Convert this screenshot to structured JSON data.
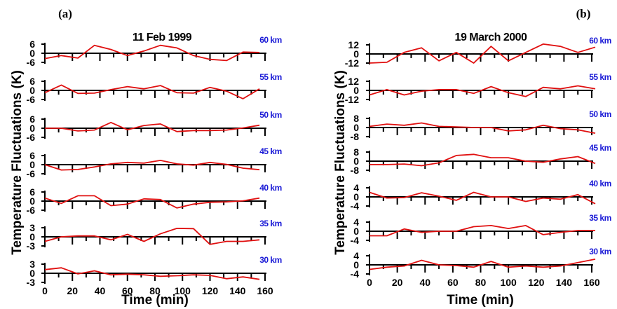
{
  "ylabel": "Temperature Fluctuations (K)",
  "colors": {
    "line": "#e01010",
    "altitude": "#1a1ad6",
    "axis": "#000000"
  },
  "chart_data": [
    {
      "type": "line",
      "panel_label": "(a)",
      "title": "11 Feb 1999",
      "xlabel": "Time (min)",
      "xlim": [
        0,
        160
      ],
      "x_ticks": [
        "0",
        "20",
        "40",
        "60",
        "80",
        "100",
        "120",
        "140",
        "160"
      ],
      "panels": [
        {
          "altitude": "60 km",
          "ylim": [
            -6,
            6
          ],
          "y_ticks": [
            "6",
            "0",
            "-6"
          ],
          "x": [
            0,
            12,
            24,
            36,
            48,
            60,
            72,
            84,
            96,
            108,
            120,
            132,
            144,
            156
          ],
          "values": [
            -3.5,
            -1.5,
            -3.2,
            5.2,
            2.5,
            -1.5,
            1.5,
            5.2,
            3.5,
            -1.5,
            -4,
            -4.8,
            0.8,
            0.5
          ]
        },
        {
          "altitude": "55 km",
          "ylim": [
            -6,
            6
          ],
          "y_ticks": [
            "6",
            "0",
            "-6"
          ],
          "x": [
            0,
            12,
            24,
            36,
            48,
            60,
            72,
            84,
            96,
            108,
            120,
            132,
            144,
            156
          ],
          "values": [
            -1.5,
            3.5,
            -2,
            -1.8,
            0.5,
            2.5,
            1,
            3.2,
            -1.5,
            -1.8,
            2,
            -0.5,
            -5.5,
            1
          ]
        },
        {
          "altitude": "50 km",
          "ylim": [
            -6,
            6
          ],
          "y_ticks": [
            "6",
            "0",
            "-6"
          ],
          "x": [
            0,
            12,
            24,
            36,
            48,
            60,
            72,
            84,
            96,
            108,
            120,
            132,
            144,
            156
          ],
          "values": [
            0,
            0,
            -1.8,
            -1.2,
            3.8,
            -1,
            1.8,
            2.8,
            -2.2,
            -1.5,
            -1.5,
            -1.2,
            0.2,
            2
          ]
        },
        {
          "altitude": "45 km",
          "ylim": [
            -6,
            6
          ],
          "y_ticks": [
            "6",
            "0",
            "-6"
          ],
          "x": [
            0,
            12,
            24,
            36,
            48,
            60,
            72,
            84,
            96,
            108,
            120,
            132,
            144,
            156
          ],
          "values": [
            0,
            -3.5,
            -3.2,
            -1.5,
            0.5,
            1.5,
            1,
            2.8,
            0.5,
            -0.3,
            1.5,
            0.2,
            -2.3,
            -3.3
          ]
        },
        {
          "altitude": "40 km",
          "ylim": [
            -6,
            6
          ],
          "y_ticks": [
            "6",
            "0",
            "-6"
          ],
          "x": [
            0,
            12,
            24,
            36,
            48,
            60,
            72,
            84,
            96,
            108,
            120,
            132,
            144,
            156
          ],
          "values": [
            2,
            -1.5,
            3.5,
            3.5,
            -3,
            -2,
            1.5,
            1,
            -4.5,
            -2,
            -0.8,
            -0.5,
            0.2,
            2
          ]
        },
        {
          "altitude": "35 km",
          "ylim": [
            -3,
            3
          ],
          "y_ticks": [
            "3",
            "0",
            "-3"
          ],
          "x": [
            0,
            12,
            24,
            36,
            48,
            60,
            72,
            84,
            96,
            108,
            120,
            132,
            144,
            156
          ],
          "values": [
            -1.5,
            0,
            0.3,
            0.3,
            -1,
            0.8,
            -1.5,
            1,
            2.8,
            2.7,
            -2.5,
            -1.5,
            -1.5,
            -1
          ]
        },
        {
          "altitude": "30 km",
          "ylim": [
            -3,
            3
          ],
          "y_ticks": [
            "3",
            "0",
            "-3"
          ],
          "x": [
            0,
            12,
            24,
            36,
            48,
            60,
            72,
            84,
            96,
            108,
            120,
            132,
            144,
            156
          ],
          "values": [
            1.2,
            1.8,
            -0.2,
            0.8,
            -0.5,
            -0.3,
            -0.5,
            -1,
            -0.8,
            -0.5,
            -0.7,
            -1.8,
            -1.2,
            -2
          ]
        }
      ]
    },
    {
      "type": "line",
      "panel_label": "(b)",
      "title": "19 March 2000",
      "xlabel": "Time (min)",
      "xlim": [
        0,
        160
      ],
      "x_ticks": [
        "0",
        "20",
        "40",
        "60",
        "80",
        "100",
        "120",
        "140",
        "160"
      ],
      "panels": [
        {
          "altitude": "60 km",
          "ylim": [
            -12,
            12
          ],
          "y_ticks": [
            "12",
            "0",
            "-12"
          ],
          "x": [
            0,
            12.5,
            25,
            37.5,
            50,
            62.5,
            75,
            87.5,
            100,
            112.5,
            125,
            137.5,
            150,
            162.5
          ],
          "values": [
            -12,
            -11,
            2,
            8,
            -9,
            2,
            -12,
            10,
            -9,
            2,
            13,
            10,
            2,
            9
          ]
        },
        {
          "altitude": "55 km",
          "ylim": [
            -12,
            12
          ],
          "y_ticks": [
            "12",
            "0",
            "-12"
          ],
          "x": [
            0,
            12.5,
            25,
            37.5,
            50,
            62.5,
            75,
            87.5,
            100,
            112.5,
            125,
            137.5,
            150,
            162.5
          ],
          "values": [
            -6,
            1,
            -6,
            -1,
            1,
            1,
            -4,
            5,
            -3,
            -8,
            4,
            2,
            6,
            2
          ]
        },
        {
          "altitude": "50 km",
          "ylim": [
            -8,
            8
          ],
          "y_ticks": [
            "8",
            "0",
            "-8"
          ],
          "x": [
            0,
            12.5,
            25,
            37.5,
            50,
            62.5,
            75,
            87.5,
            100,
            112.5,
            125,
            137.5,
            150,
            162.5
          ],
          "values": [
            1,
            3,
            2,
            4,
            1,
            0.5,
            0,
            0,
            -3,
            -2,
            2,
            -1,
            -2,
            -5
          ]
        },
        {
          "altitude": "45 km",
          "ylim": [
            -8,
            8
          ],
          "y_ticks": [
            "8",
            "0",
            "-8"
          ],
          "x": [
            0,
            12.5,
            25,
            37.5,
            50,
            62.5,
            75,
            87.5,
            100,
            112.5,
            125,
            137.5,
            150,
            162.5
          ],
          "values": [
            -3,
            -3,
            -2.5,
            -4,
            -1.5,
            5,
            6,
            3,
            3,
            0,
            -1,
            2,
            4,
            -2
          ]
        },
        {
          "altitude": "40 km",
          "ylim": [
            -4,
            4
          ],
          "y_ticks": [
            "4",
            "0",
            "-4"
          ],
          "x": [
            0,
            12.5,
            25,
            37.5,
            50,
            62.5,
            75,
            87.5,
            100,
            112.5,
            125,
            137.5,
            150,
            162.5
          ],
          "values": [
            2,
            -0.5,
            -0.3,
            1.8,
            0.3,
            -1.5,
            2,
            0,
            0,
            -2,
            -0.5,
            -1,
            1,
            -3
          ]
        },
        {
          "altitude": "35 km",
          "ylim": [
            -4,
            4
          ],
          "y_ticks": [
            "4",
            "0",
            "-4"
          ],
          "x": [
            0,
            12.5,
            25,
            37.5,
            50,
            62.5,
            75,
            87.5,
            100,
            112.5,
            125,
            137.5,
            150,
            162.5
          ],
          "values": [
            -2,
            -2,
            1,
            -0.5,
            0,
            0,
            2,
            2.5,
            1.2,
            2.5,
            -1.5,
            -0.5,
            0.3,
            0.3
          ]
        },
        {
          "altitude": "30 km",
          "ylim": [
            -4,
            4
          ],
          "y_ticks": [
            "4",
            "0",
            "-4"
          ],
          "x": [
            0,
            12.5,
            25,
            37.5,
            50,
            62.5,
            75,
            87.5,
            100,
            112.5,
            125,
            137.5,
            150,
            162.5
          ],
          "values": [
            -2,
            -1,
            -0.5,
            2,
            0,
            -0.3,
            -1,
            1.5,
            -1,
            -0.5,
            -1,
            -0.5,
            1,
            2.5
          ]
        }
      ]
    }
  ]
}
